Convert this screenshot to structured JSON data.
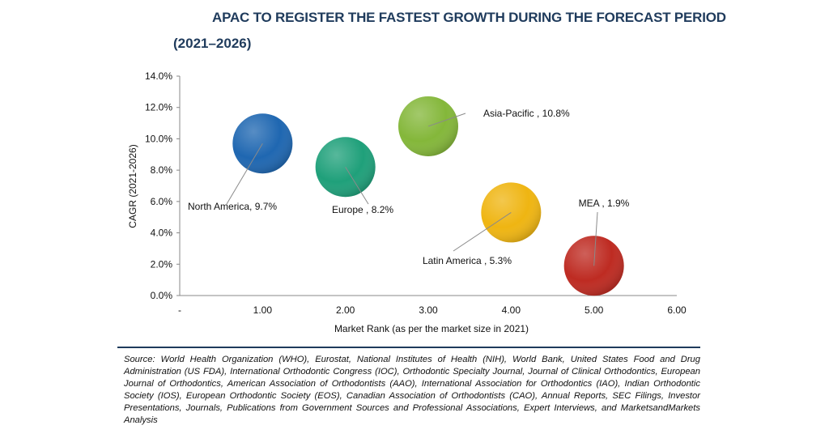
{
  "title": "APAC TO REGISTER THE FASTEST GROWTH DURING THE FORECAST PERIOD",
  "subtitle": "(2021–2026)",
  "source": "Source: World Health Organization (WHO), Eurostat, National Institutes of Health (NIH), World Bank, United States Food and Drug Administration (US FDA), International Orthodontic Congress (IOC), Orthodontic Specialty Journal, Journal of Clinical Orthodontics, European Journal of Orthodontics, American Association of Orthodontists (AAO), International Association for Orthodontics (IAO), Indian Orthodontic Society (IOS), European Orthodontic Society (EOS), Canadian Association of Orthodontists (CAO), Annual Reports, SEC Filings, Investor Presentations, Journals, Publications from Government Sources and Professional Associations, Expert Interviews, and MarketsandMarkets Analysis",
  "chart_data": {
    "type": "scatter",
    "xlabel": "Market Rank (as per the market size in 2021)",
    "ylabel": "CAGR (2021-2026)",
    "xlim": [
      0,
      6
    ],
    "ylim": [
      0,
      14
    ],
    "x_ticks": [
      "-",
      "1.00",
      "2.00",
      "3.00",
      "4.00",
      "5.00",
      "6.00"
    ],
    "y_ticks": [
      "0.0%",
      "2.0%",
      "4.0%",
      "6.0%",
      "8.0%",
      "10.0%",
      "12.0%",
      "14.0%"
    ],
    "grid": false,
    "legend": "none",
    "points": [
      {
        "label": "North America, 9.7%",
        "x": 1,
        "y": 9.7,
        "color": "#1f67b1"
      },
      {
        "label": "Europe , 8.2%",
        "x": 2,
        "y": 8.2,
        "color": "#1fa07a"
      },
      {
        "label": "Asia-Pacific , 10.8%",
        "x": 3,
        "y": 10.8,
        "color": "#84b73a"
      },
      {
        "label": "Latin America , 5.3%",
        "x": 4,
        "y": 5.3,
        "color": "#efb512"
      },
      {
        "label": "MEA , 1.9%",
        "x": 5,
        "y": 1.9,
        "color": "#be2b22"
      }
    ]
  }
}
